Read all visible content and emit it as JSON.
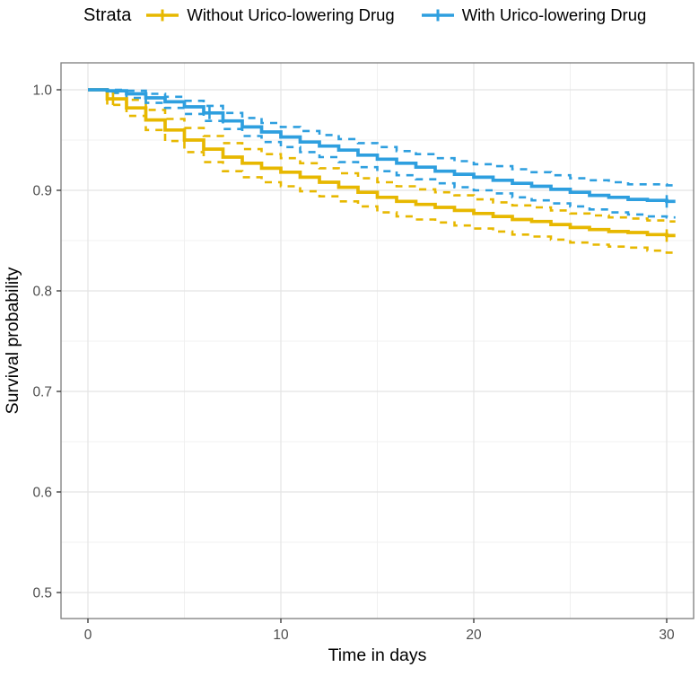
{
  "legend": {
    "title": "Strata",
    "items": [
      {
        "id": "without",
        "label": "Without Urico-lowering Drug",
        "color": "#E7B800"
      },
      {
        "id": "with",
        "label": "With Urico-lowering Drug",
        "color": "#2E9FDF"
      }
    ]
  },
  "chart_data": {
    "type": "line",
    "subtype": "kaplan-meier-step-survival",
    "title": "",
    "xlabel": "Time in days",
    "ylabel": "Survival probability",
    "xlim": [
      -1.4,
      31.4
    ],
    "ylim": [
      0.473,
      1.027
    ],
    "xticks": [
      0,
      10,
      20,
      30
    ],
    "yticks": [
      0.5,
      0.6,
      0.7,
      0.8,
      0.9,
      1.0
    ],
    "ytick_labels": [
      "0.5",
      "0.6",
      "0.7",
      "0.8",
      "0.9",
      "1.0"
    ],
    "xtick_labels": [
      "0",
      "10",
      "20",
      "30"
    ],
    "x_minor": [
      5,
      15,
      25
    ],
    "y_minor": [
      0.55,
      0.65,
      0.75,
      0.85,
      0.95
    ],
    "grid": true,
    "legend_position": "top",
    "colors": {
      "without": "#E7B800",
      "with": "#2E9FDF",
      "grid_major": "#e4e4e4",
      "grid_minor": "#f0f0f0",
      "panel_border": "#7d7d7d",
      "tick_text": "#4d4d4d",
      "axis_title": "#000000"
    },
    "x": [
      0,
      1,
      2,
      3,
      4,
      5,
      6,
      7,
      8,
      9,
      10,
      11,
      12,
      13,
      14,
      15,
      16,
      17,
      18,
      19,
      20,
      21,
      22,
      23,
      24,
      25,
      26,
      27,
      28,
      29,
      30
    ],
    "series": [
      {
        "id": "without-solid",
        "name": "Without Urico-lowering Drug",
        "color": "#E7B800",
        "style": "solid",
        "values": [
          1.0,
          0.991,
          0.982,
          0.97,
          0.96,
          0.95,
          0.941,
          0.933,
          0.927,
          0.922,
          0.918,
          0.913,
          0.908,
          0.903,
          0.898,
          0.893,
          0.889,
          0.886,
          0.883,
          0.88,
          0.877,
          0.874,
          0.871,
          0.869,
          0.866,
          0.863,
          0.861,
          0.859,
          0.858,
          0.856,
          0.855
        ]
      },
      {
        "id": "without-upper-ci",
        "name": "Without Urico-lowering Drug upper 95% CI",
        "color": "#E7B800",
        "style": "dashed",
        "values": [
          1.0,
          0.997,
          0.99,
          0.98,
          0.971,
          0.962,
          0.954,
          0.947,
          0.941,
          0.936,
          0.932,
          0.927,
          0.922,
          0.917,
          0.912,
          0.908,
          0.904,
          0.901,
          0.898,
          0.895,
          0.891,
          0.888,
          0.885,
          0.883,
          0.88,
          0.877,
          0.875,
          0.873,
          0.872,
          0.87,
          0.869
        ]
      },
      {
        "id": "without-lower-ci",
        "name": "Without Urico-lowering Drug lower 95% CI",
        "color": "#E7B800",
        "style": "dashed",
        "values": [
          1.0,
          0.985,
          0.974,
          0.96,
          0.949,
          0.938,
          0.928,
          0.919,
          0.913,
          0.908,
          0.904,
          0.899,
          0.894,
          0.889,
          0.884,
          0.878,
          0.874,
          0.871,
          0.868,
          0.865,
          0.862,
          0.859,
          0.856,
          0.854,
          0.851,
          0.848,
          0.846,
          0.844,
          0.843,
          0.84,
          0.838
        ]
      },
      {
        "id": "with-solid",
        "name": "With Urico-lowering Drug",
        "color": "#2E9FDF",
        "style": "solid",
        "values": [
          1.0,
          0.999,
          0.996,
          0.992,
          0.988,
          0.983,
          0.977,
          0.969,
          0.963,
          0.958,
          0.953,
          0.948,
          0.944,
          0.94,
          0.935,
          0.931,
          0.927,
          0.923,
          0.919,
          0.916,
          0.913,
          0.91,
          0.907,
          0.904,
          0.901,
          0.898,
          0.895,
          0.893,
          0.891,
          0.89,
          0.889
        ]
      },
      {
        "id": "with-upper-ci",
        "name": "With Urico-lowering Drug upper 95% CI",
        "color": "#2E9FDF",
        "style": "dashed",
        "values": [
          1.0,
          1.0,
          0.999,
          0.996,
          0.993,
          0.989,
          0.984,
          0.977,
          0.972,
          0.967,
          0.963,
          0.959,
          0.955,
          0.951,
          0.947,
          0.943,
          0.939,
          0.936,
          0.932,
          0.929,
          0.926,
          0.924,
          0.921,
          0.918,
          0.915,
          0.912,
          0.91,
          0.908,
          0.906,
          0.906,
          0.905
        ]
      },
      {
        "id": "with-lower-ci",
        "name": "With Urico-lowering Drug lower 95% CI",
        "color": "#2E9FDF",
        "style": "dashed",
        "values": [
          1.0,
          0.997,
          0.992,
          0.987,
          0.982,
          0.976,
          0.969,
          0.961,
          0.954,
          0.948,
          0.943,
          0.938,
          0.933,
          0.928,
          0.923,
          0.919,
          0.915,
          0.911,
          0.907,
          0.903,
          0.9,
          0.897,
          0.893,
          0.89,
          0.887,
          0.884,
          0.881,
          0.878,
          0.876,
          0.874,
          0.873
        ]
      }
    ],
    "censor_marks": [
      {
        "series_id": "without-solid",
        "x": 1.3,
        "y": 0.991
      },
      {
        "series_id": "with-solid",
        "x": 6.3,
        "y": 0.977
      },
      {
        "series_id": "without-solid",
        "x": 30,
        "y": 0.855
      },
      {
        "series_id": "with-solid",
        "x": 30,
        "y": 0.889
      }
    ]
  }
}
